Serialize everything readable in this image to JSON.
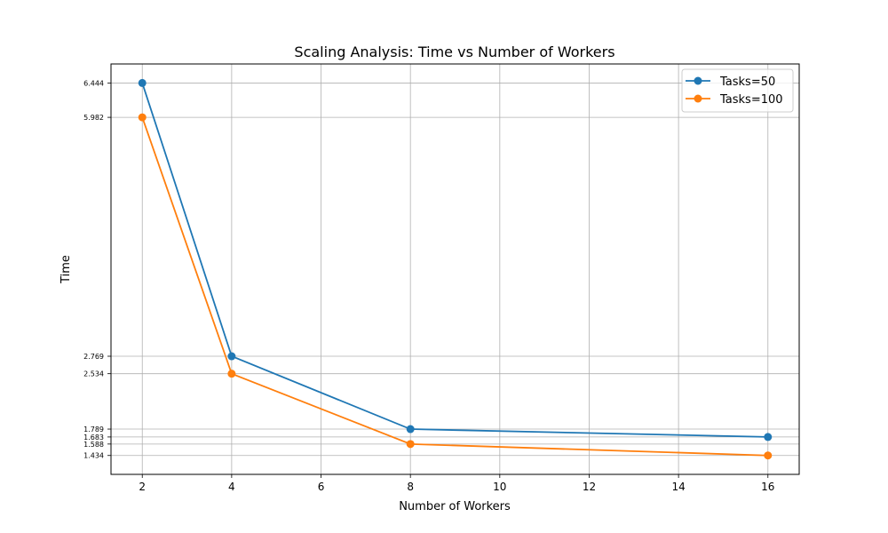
{
  "chart_data": {
    "type": "line",
    "title": "Scaling Analysis: Time vs Number of Workers",
    "xlabel": "Number of Workers",
    "ylabel": "Time",
    "x": [
      2,
      4,
      8,
      16
    ],
    "series": [
      {
        "name": "Tasks=50",
        "values": [
          6.444,
          2.769,
          1.789,
          1.683
        ],
        "color": "#1f77b4"
      },
      {
        "name": "Tasks=100",
        "values": [
          5.982,
          2.534,
          1.588,
          1.434
        ],
        "color": "#ff7f0e"
      }
    ],
    "xticks": [
      2,
      4,
      6,
      8,
      10,
      12,
      14,
      16
    ],
    "yticks": [
      6.444,
      5.982,
      2.769,
      2.534,
      1.789,
      1.683,
      1.588,
      1.434
    ],
    "ytick_labels": [
      "6.444",
      "5.982",
      "2.769",
      "2.534",
      "1.789",
      "1.683",
      "1.588",
      "1.434"
    ],
    "xlim": [
      1.3,
      16.7
    ],
    "ylim": [
      1.18,
      6.7
    ],
    "grid": true,
    "legend_position": "top-right",
    "grid_color": "#b0b0b0"
  }
}
